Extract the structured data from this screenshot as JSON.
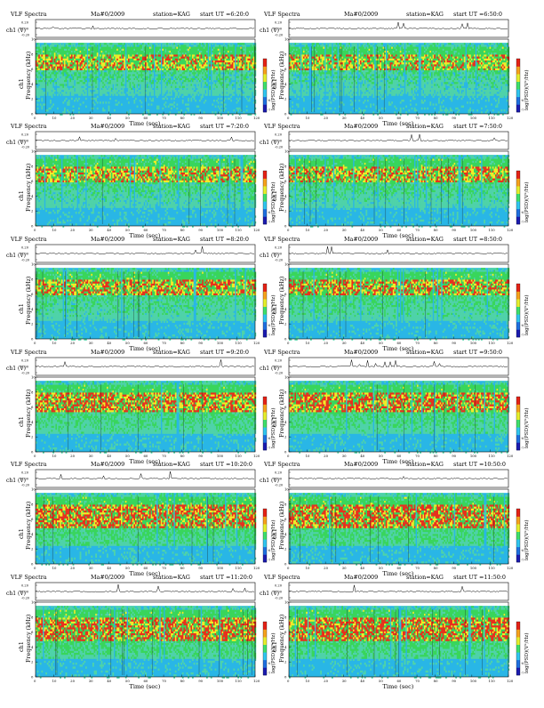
{
  "colors": {
    "background_blue": "#29b6e6",
    "mid_green": "#39d65a",
    "yellow": "#f2ec26",
    "red": "#e8301c",
    "colorbar": [
      "#1b1bb0",
      "#1e6fe0",
      "#2fc6f0",
      "#3ee06a",
      "#e6ef2c",
      "#f7a21c",
      "#e52215"
    ]
  },
  "common": {
    "title": "VLF Spectra",
    "date": "Ma#0/2009",
    "station": "station=KAG",
    "ch_label": "ch1 (V)",
    "ch_ticks": [
      "0.20",
      "0.00",
      "-0.20"
    ],
    "y_label_a": "ch1",
    "y_label_b": "Frequency (kHz)",
    "y_ticks": [
      "0",
      "2",
      "4",
      "6",
      "8",
      "10"
    ],
    "x_label": "Time (sec)",
    "x_ticks": [
      "0",
      "10",
      "20",
      "30",
      "40",
      "50",
      "60",
      "70",
      "80",
      "90",
      "100",
      "110",
      "120"
    ],
    "cbar_label": "log(PSD)(V²/Hz)",
    "cbar_ticks": [
      "-6",
      "-7"
    ]
  },
  "chart_data": [
    {
      "type": "heatmap",
      "start_ut": "6:20:0",
      "title": "VLF Spectra  Ma#0/2009  station=KAG  start UT =6:20:0",
      "xlabel": "Time (sec)",
      "ylabel": "Frequency (kHz)",
      "xlim": [
        0,
        120
      ],
      "ylim": [
        0,
        10
      ],
      "band_top_khz": 9.5,
      "red_band_khz": [
        6,
        8
      ],
      "red_intensity": 0.55
    },
    {
      "type": "heatmap",
      "start_ut": "6:50:0",
      "title": "VLF Spectra  Ma#0/2009  station=KAG  start UT =6:50:0",
      "xlabel": "Time (sec)",
      "ylabel": "Frequency (kHz)",
      "xlim": [
        0,
        120
      ],
      "ylim": [
        0,
        10
      ],
      "band_top_khz": 9.5,
      "red_band_khz": [
        6,
        8
      ],
      "red_intensity": 0.5
    },
    {
      "type": "heatmap",
      "start_ut": "7:20:0",
      "title": "VLF Spectra  Ma#0/2009  station=KAG  start UT =7:20:0",
      "xlabel": "Time (sec)",
      "ylabel": "Frequency (kHz)",
      "xlim": [
        0,
        120
      ],
      "ylim": [
        0,
        10
      ],
      "band_top_khz": 9.5,
      "red_band_khz": [
        6,
        8
      ],
      "red_intensity": 0.6
    },
    {
      "type": "heatmap",
      "start_ut": "7:50:0",
      "title": "VLF Spectra  Ma#0/2009  station=KAG  start UT =7:50:0",
      "xlabel": "Time (sec)",
      "ylabel": "Frequency (kHz)",
      "xlim": [
        0,
        120
      ],
      "ylim": [
        0,
        10
      ],
      "band_top_khz": 9.5,
      "red_band_khz": [
        6,
        8
      ],
      "red_intensity": 0.65
    },
    {
      "type": "heatmap",
      "start_ut": "8:20:0",
      "title": "VLF Spectra  Ma#0/2009  station=KAG  start UT =8:20:0",
      "xlabel": "Time (sec)",
      "ylabel": "Frequency (kHz)",
      "xlim": [
        0,
        120
      ],
      "ylim": [
        0,
        10
      ],
      "band_top_khz": 9.5,
      "red_band_khz": [
        6,
        8
      ],
      "red_intensity": 0.7
    },
    {
      "type": "heatmap",
      "start_ut": "8:50:0",
      "title": "VLF Spectra  Ma#0/2009  station=KAG  start UT =8:50:0",
      "xlabel": "Time (sec)",
      "ylabel": "Frequency (kHz)",
      "xlim": [
        0,
        120
      ],
      "ylim": [
        0,
        10
      ],
      "band_top_khz": 9.5,
      "red_band_khz": [
        6,
        8
      ],
      "red_intensity": 0.75
    },
    {
      "type": "heatmap",
      "start_ut": "9:20:0",
      "title": "VLF Spectra  Ma#0/2009  station=KAG  start UT =9:20:0",
      "xlabel": "Time (sec)",
      "ylabel": "Frequency (kHz)",
      "xlim": [
        0,
        120
      ],
      "ylim": [
        0,
        10
      ],
      "band_top_khz": 9.5,
      "red_band_khz": [
        5.5,
        8
      ],
      "red_intensity": 0.85
    },
    {
      "type": "heatmap",
      "start_ut": "9:50:0",
      "title": "VLF Spectra  Ma#0/2009  station=KAG  start UT =9:50:0",
      "xlabel": "Time (sec)",
      "ylabel": "Frequency (kHz)",
      "xlim": [
        0,
        120
      ],
      "ylim": [
        0,
        10
      ],
      "band_top_khz": 9.5,
      "red_band_khz": [
        5.5,
        8
      ],
      "red_intensity": 0.85
    },
    {
      "type": "heatmap",
      "start_ut": "10:20:0",
      "title": "VLF Spectra  Ma#0/2009  station=KAG  start UT =10:20:0",
      "xlabel": "Time (sec)",
      "ylabel": "Frequency (kHz)",
      "xlim": [
        0,
        120
      ],
      "ylim": [
        0,
        10
      ],
      "band_top_khz": 9.5,
      "red_band_khz": [
        5,
        8
      ],
      "red_intensity": 0.95
    },
    {
      "type": "heatmap",
      "start_ut": "10:50:0",
      "title": "VLF Spectra  Ma#0/2009  station=KAG  start UT =10:50:0",
      "xlabel": "Time (sec)",
      "ylabel": "Frequency (kHz)",
      "xlim": [
        0,
        120
      ],
      "ylim": [
        0,
        10
      ],
      "band_top_khz": 9.5,
      "red_band_khz": [
        5,
        8
      ],
      "red_intensity": 0.95
    },
    {
      "type": "heatmap",
      "start_ut": "11:20:0",
      "title": "VLF Spectra  Ma#0/2009  station=KAG  start UT =11:20:0",
      "xlabel": "Time (sec)",
      "ylabel": "Frequency (kHz)",
      "xlim": [
        0,
        120
      ],
      "ylim": [
        0,
        10
      ],
      "band_top_khz": 9.5,
      "red_band_khz": [
        5,
        8
      ],
      "red_intensity": 0.95
    },
    {
      "type": "heatmap",
      "start_ut": "11:50:0",
      "title": "VLF Spectra  Ma#0/2009  station=KAG  start UT =11:50:0",
      "xlabel": "Time (sec)",
      "ylabel": "Frequency (kHz)",
      "xlim": [
        0,
        120
      ],
      "ylim": [
        0,
        10
      ],
      "band_top_khz": 9.5,
      "red_band_khz": [
        5,
        8
      ],
      "red_intensity": 0.95
    }
  ]
}
